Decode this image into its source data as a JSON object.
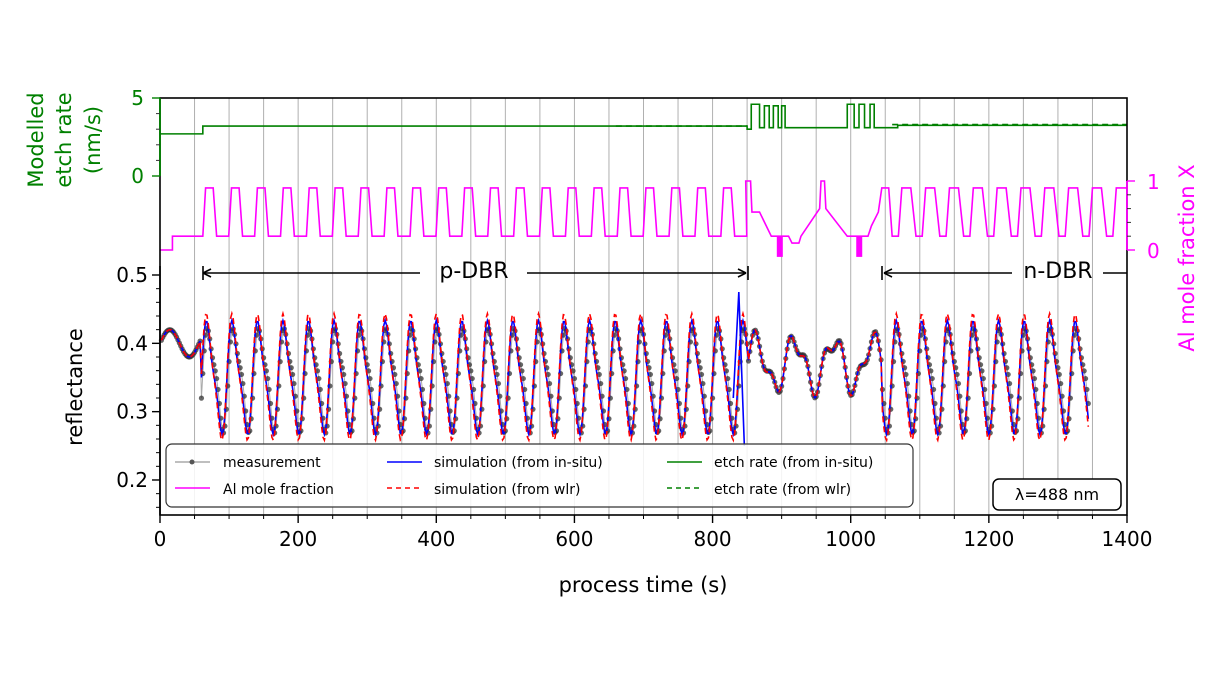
{
  "chart_data": {
    "type": "line",
    "xlabel": "process time (s)",
    "xlim": [
      0,
      1400
    ],
    "x_ticks": [
      "0",
      "200",
      "400",
      "600",
      "800",
      "1000",
      "1200",
      "1400"
    ],
    "x_tick_values": [
      0,
      200,
      400,
      600,
      800,
      1000,
      1200,
      1400
    ],
    "grid": "vertical every 50 s",
    "axes": {
      "reflectance": {
        "label": "reflectance",
        "ylim": [
          0.155,
          0.5
        ],
        "ticks": [
          "0.2",
          "0.3",
          "0.4",
          "0.5"
        ],
        "tick_values": [
          0.2,
          0.3,
          0.4,
          0.5
        ]
      },
      "etch_rate": {
        "label_lines": [
          "Modelled",
          "etch rate",
          "(nm/s)"
        ],
        "ticks": [
          "0",
          "5"
        ],
        "tick_values": [
          0,
          5
        ],
        "color": "#008000"
      },
      "al_fraction": {
        "label": "Al mole fraction X",
        "ticks": [
          "0",
          "1"
        ],
        "tick_values": [
          0,
          1
        ],
        "color": "#ff00ff"
      }
    },
    "annotations": {
      "p_dbr": {
        "label": "p-DBR",
        "x_start": 60,
        "x_end": 850
      },
      "n_dbr": {
        "label": "n-DBR",
        "x_start": 1045,
        "x_end": 1400
      },
      "wavelength": "λ=488 nm"
    },
    "legend": {
      "placement": "lower-left",
      "entries": [
        {
          "label": "measurement",
          "color": "#555555",
          "style": "dot-line"
        },
        {
          "label": "Al mole fraction",
          "color": "#ff00ff",
          "style": "solid"
        },
        {
          "label": "simulation (from in-situ)",
          "color": "#0000ff",
          "style": "solid"
        },
        {
          "label": "simulation (from wlr)",
          "color": "#ff0000",
          "style": "dashed"
        },
        {
          "label": "etch rate (from in-situ)",
          "color": "#008000",
          "style": "solid"
        },
        {
          "label": "etch rate (from wlr)",
          "color": "#008000",
          "style": "dashed"
        }
      ]
    },
    "series": {
      "etch_rate_in_situ": {
        "name": "etch rate (from in-situ)",
        "segments": [
          {
            "x": [
              0,
              62
            ],
            "y": 2.7
          },
          {
            "x": [
              62,
              850
            ],
            "y": 3.2
          },
          {
            "x": [
              850,
              1045
            ],
            "y": "pulsed 3.1–4.7"
          },
          {
            "x": [
              1045,
              1400
            ],
            "y": 3.2
          }
        ]
      },
      "etch_rate_wlr": {
        "name": "etch rate (from wlr)",
        "segments": [
          {
            "x": [
              660,
              850
            ],
            "y": 3.2
          },
          {
            "x": [
              1060,
              1400
            ],
            "y": 3.3
          }
        ]
      },
      "al_mole_fraction": {
        "name": "Al mole fraction",
        "p_dbr_periods": 21,
        "n_dbr_periods": 10,
        "low": 0.2,
        "high": 0.9,
        "start_value": 0.0,
        "step_value_at_18s": 0.2
      },
      "reflectance": {
        "period_s": 37,
        "peak_measurement": 0.42,
        "trough_measurement": 0.28,
        "peak_sim_wlr": 0.44,
        "trough_sim": 0.27,
        "max_near_840s": 0.475
      }
    }
  }
}
